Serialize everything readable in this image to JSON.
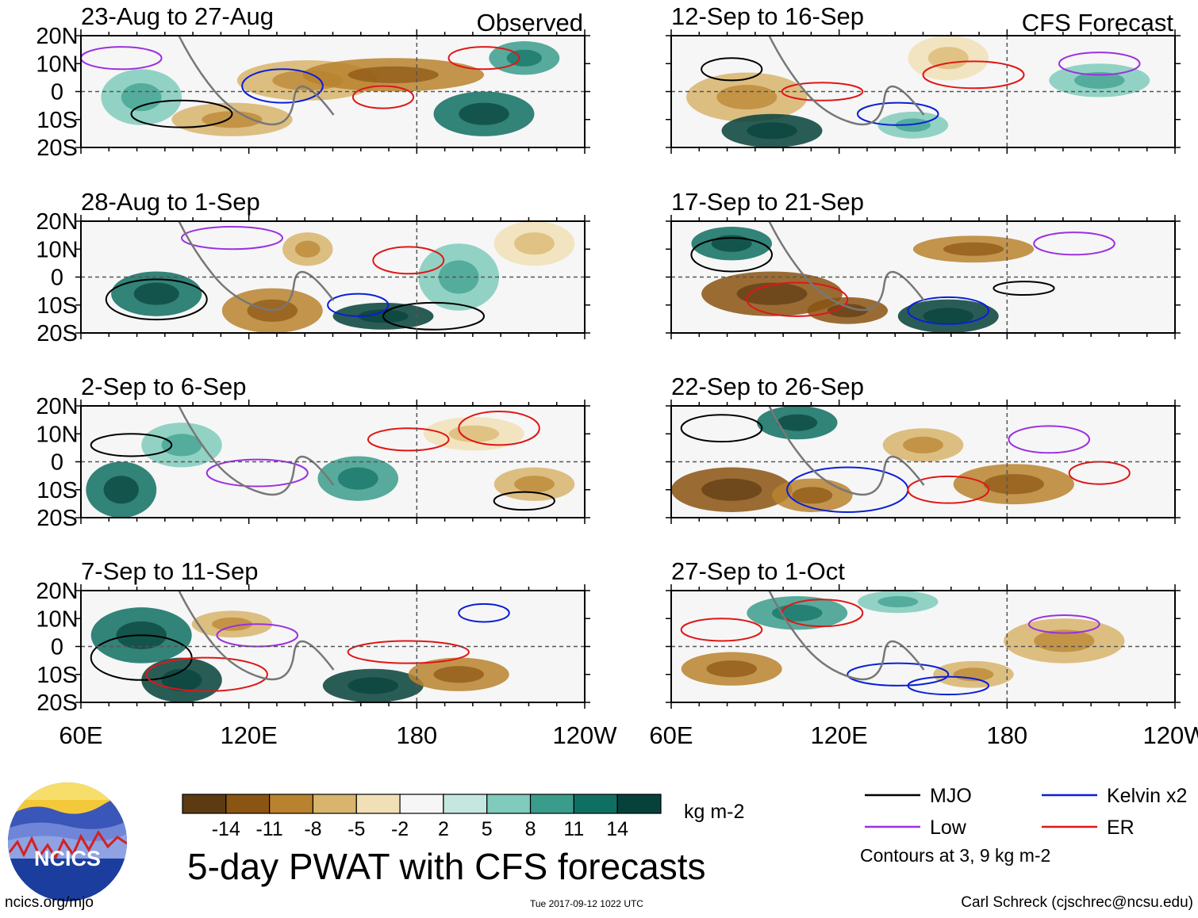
{
  "chart_data": {
    "type": "heatmap",
    "title": "5-day PWAT with CFS forecasts",
    "units": "kg m-2",
    "column_headers": [
      "Observed",
      "CFS Forecast"
    ],
    "y_tick_labels": [
      "20N",
      "10N",
      "0",
      "10S",
      "20S"
    ],
    "x_tick_labels": [
      "60E",
      "120E",
      "180",
      "120W"
    ],
    "lon_range": [
      60,
      240
    ],
    "lat_range": [
      -20,
      20
    ],
    "panels": [
      {
        "title": "23-Aug to 27-Aug",
        "group": "Observed"
      },
      {
        "title": "28-Aug to 1-Sep",
        "group": "Observed"
      },
      {
        "title": "2-Sep to 6-Sep",
        "group": "Observed"
      },
      {
        "title": "7-Sep to 11-Sep",
        "group": "Observed"
      },
      {
        "title": "12-Sep to 16-Sep",
        "group": "CFS Forecast"
      },
      {
        "title": "17-Sep to 21-Sep",
        "group": "CFS Forecast"
      },
      {
        "title": "22-Sep to 26-Sep",
        "group": "CFS Forecast"
      },
      {
        "title": "27-Sep to 1-Oct",
        "group": "CFS Forecast"
      }
    ],
    "colorbar": {
      "ticks": [
        "-14",
        "-11",
        "-8",
        "-5",
        "-2",
        "2",
        "5",
        "8",
        "11",
        "14"
      ],
      "colors": [
        "#5c3a12",
        "#8a5412",
        "#b8822e",
        "#d8b46c",
        "#f1e0b6",
        "#f6f6f6",
        "#c4e8df",
        "#80cbbb",
        "#3b9c8c",
        "#0f6f62",
        "#06413a"
      ]
    },
    "legend": [
      {
        "label": "MJO",
        "color": "#000000"
      },
      {
        "label": "Kelvin x2",
        "color": "#0a1fd6"
      },
      {
        "label": "Low",
        "color": "#9b30e0"
      },
      {
        "label": "ER",
        "color": "#e01616"
      }
    ],
    "contour_note": "Contours at 3, 9 kg m-2"
  },
  "footer": {
    "left": "ncics.org/mjo",
    "middle": "Tue 2017-09-12 1022 UTC",
    "right": "Carl Schreck (cjschrec@ncsu.edu)"
  },
  "logo": {
    "text": "NCICS"
  }
}
